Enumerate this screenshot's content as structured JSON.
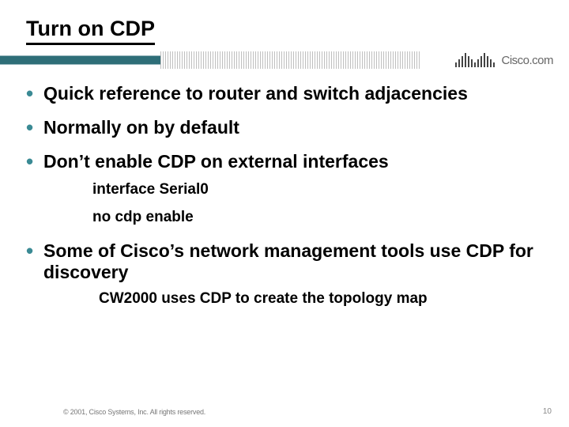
{
  "title": "Turn on CDP",
  "brand_text": "Cisco.com",
  "bullets": [
    {
      "text": "Quick reference to router and switch adjacencies",
      "subs": []
    },
    {
      "text": "Normally on by default",
      "subs": []
    },
    {
      "text": "Don’t enable CDP on external interfaces",
      "subs": [
        "interface Serial0",
        "no cdp enable"
      ]
    },
    {
      "text": "Some of Cisco’s network management tools use CDP for discovery",
      "subs": [
        "CW2000 uses CDP to create the topology map"
      ]
    }
  ],
  "footer": "© 2001, Cisco Systems, Inc. All rights reserved.",
  "page_number": "10",
  "colors": {
    "bullet_accent": "#3a8a94",
    "banner_teal": "#2e6e78",
    "text": "#000000",
    "footer_text": "#777777",
    "brand_text_color": "#666666",
    "background": "#ffffff"
  },
  "typography": {
    "title_fontsize": 27,
    "bullet_fontsize": 23,
    "sub_fontsize": 19,
    "footer_fontsize": 9,
    "font_family": "Arial",
    "font_weight": "bold"
  },
  "cisco_bar_heights": [
    6,
    10,
    14,
    18,
    14,
    10,
    6,
    10,
    14,
    18,
    14,
    10,
    6
  ]
}
